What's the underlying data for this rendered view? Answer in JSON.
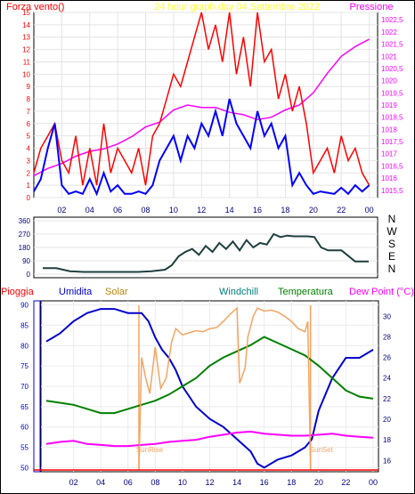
{
  "chart_data": [
    {
      "type": "line",
      "title": "24 hour graph day   04 Settembre 2022",
      "left_label": "Forza vento()",
      "right_label": "Pressione",
      "x_ticks": [
        "02",
        "04",
        "06",
        "08",
        "10",
        "12",
        "14",
        "16",
        "18",
        "20",
        "22",
        "00"
      ],
      "y_left_ticks": [
        "0",
        "1",
        "2",
        "3",
        "4",
        "5",
        "6",
        "7",
        "8",
        "9",
        "10",
        "11",
        "12",
        "13",
        "14",
        "15"
      ],
      "y_left_range": [
        0,
        15
      ],
      "y_right_ticks": [
        "1015,5",
        "1016",
        "1016,5",
        "1017",
        "1017,5",
        "1018",
        "1018,5",
        "1019",
        "1019,5",
        "1020",
        "1020,5",
        "1021",
        "1021,5",
        "1022",
        "1022,5"
      ],
      "y_right_range": [
        1015.2,
        1022.8
      ],
      "series": [
        {
          "name": "Pressione",
          "color": "#ff00ff",
          "axis": "right",
          "hours": [
            0,
            1,
            2,
            3,
            4,
            5,
            6,
            7,
            8,
            9,
            10,
            11,
            12,
            13,
            14,
            15,
            16,
            17,
            18,
            19,
            20,
            21,
            22,
            23,
            24
          ],
          "values": [
            1016.1,
            1016.4,
            1016.6,
            1016.9,
            1017.1,
            1017.2,
            1017.4,
            1017.7,
            1018.1,
            1018.3,
            1018.8,
            1019.0,
            1018.9,
            1018.9,
            1018.7,
            1018.6,
            1018.4,
            1018.5,
            1018.8,
            1019.0,
            1019.5,
            1020.3,
            1021.0,
            1021.4,
            1021.7
          ]
        },
        {
          "name": "",
          "color": "#ff0000",
          "axis": "left",
          "hours": [
            0,
            0.5,
            1,
            1.5,
            2,
            2.5,
            3,
            3.5,
            4,
            4.5,
            5,
            5.5,
            6,
            6.5,
            7,
            7.5,
            8,
            8.5,
            9,
            9.5,
            10,
            10.5,
            11,
            11.5,
            12,
            12.5,
            13,
            13.5,
            14,
            14.5,
            15,
            15.5,
            16,
            16.5,
            17,
            17.5,
            18,
            18.5,
            19,
            19.5,
            20,
            20.5,
            21,
            21.5,
            22,
            22.5,
            23,
            23.5,
            24
          ],
          "values": [
            2,
            4,
            5,
            6,
            3,
            2,
            5,
            1,
            4,
            1,
            6,
            2,
            4,
            3,
            2,
            4,
            1,
            5,
            6,
            8,
            10,
            9,
            11,
            13,
            15,
            12,
            14,
            11,
            15,
            10,
            13,
            9,
            15,
            11,
            12,
            8,
            10,
            7,
            9,
            6,
            2,
            3,
            4,
            2,
            5,
            3,
            4,
            2,
            1
          ]
        },
        {
          "name": "",
          "color": "#0000ff",
          "axis": "left",
          "hours": [
            0,
            0.5,
            1,
            1.5,
            2,
            2.5,
            3,
            3.5,
            4,
            4.5,
            5,
            5.5,
            6,
            6.5,
            7,
            7.5,
            8,
            8.5,
            9,
            9.5,
            10,
            10.5,
            11,
            11.5,
            12,
            12.5,
            13,
            13.5,
            14,
            14.5,
            15,
            15.5,
            16,
            16.5,
            17,
            17.5,
            18,
            18.5,
            19,
            19.5,
            20,
            20.5,
            21,
            21.5,
            22,
            22.5,
            23,
            23.5,
            24
          ],
          "values": [
            0.5,
            1.5,
            4,
            6,
            1,
            0.3,
            0.5,
            0.3,
            1.5,
            0.3,
            2,
            0.5,
            1,
            0.3,
            0.3,
            0.5,
            0.3,
            1,
            3,
            4,
            5,
            3,
            5,
            4,
            6,
            5,
            7,
            5,
            8,
            6,
            5,
            4,
            7,
            5,
            6,
            4,
            5,
            1,
            2,
            1,
            0.3,
            0.5,
            0.4,
            0.3,
            0.8,
            0.3,
            1,
            0.5,
            1
          ]
        }
      ]
    },
    {
      "type": "line",
      "right_labels": [
        "N",
        "W",
        "S",
        "E",
        "N"
      ],
      "y_ticks": [
        "360",
        "270",
        "180",
        "90",
        "0"
      ],
      "y_range": [
        0,
        360
      ],
      "series": [
        {
          "name": "",
          "color": "#1f3f3f",
          "hours": [
            0,
            1,
            2,
            3,
            4,
            5,
            6,
            7,
            8,
            9,
            9.5,
            10,
            10.5,
            11,
            11.5,
            12,
            12.5,
            13,
            13.5,
            14,
            14.5,
            15,
            15.5,
            16,
            16.5,
            17,
            17.5,
            18,
            18.5,
            19,
            19.5,
            20,
            20.5,
            21,
            22,
            23,
            24
          ],
          "values": [
            40,
            40,
            20,
            15,
            15,
            15,
            15,
            15,
            20,
            30,
            60,
            120,
            150,
            170,
            130,
            190,
            150,
            210,
            170,
            220,
            160,
            230,
            180,
            210,
            200,
            270,
            250,
            260,
            255,
            255,
            255,
            250,
            180,
            160,
            160,
            85,
            85
          ]
        }
      ]
    },
    {
      "type": "line",
      "legend": [
        "Pioggia",
        "Umidita",
        "Solar",
        "Windchill",
        "Temperatura",
        "Dew Point (°C)"
      ],
      "x_ticks": [
        "02",
        "04",
        "06",
        "08",
        "10",
        "12",
        "14",
        "16",
        "18",
        "20",
        "22",
        "00"
      ],
      "y_left_ticks": [
        "50",
        "55",
        "60",
        "65",
        "70",
        "75",
        "80",
        "85",
        "90"
      ],
      "y_left_range": [
        49,
        91
      ],
      "y_right_ticks": [
        "16",
        "18",
        "20",
        "22",
        "24",
        "26",
        "28",
        "30"
      ],
      "y_right_range": [
        14.9,
        31.5
      ],
      "annotations": [
        "SunRise",
        "SunSet"
      ],
      "series": [
        {
          "name": "Umidita",
          "color": "#0000cc",
          "axis": "left",
          "hours": [
            0,
            1,
            2,
            3,
            4,
            5,
            6,
            7,
            7.5,
            8,
            8.5,
            9,
            9.5,
            10,
            11,
            12,
            13,
            14,
            15,
            15.5,
            16,
            17,
            18,
            19,
            19.5,
            20,
            21,
            22,
            23,
            24
          ],
          "values": [
            81,
            83,
            86,
            88,
            89,
            89,
            88,
            88,
            86,
            82,
            79,
            77,
            74,
            70,
            65,
            62,
            60,
            57,
            54,
            51,
            50,
            52,
            53,
            55,
            57,
            64,
            72,
            77,
            77,
            79
          ]
        },
        {
          "name": "Temperatura",
          "color": "#008000",
          "axis": "right",
          "hours": [
            0,
            1,
            2,
            3,
            4,
            5,
            6,
            7,
            8,
            9,
            10,
            11,
            12,
            13,
            14,
            15,
            16,
            17,
            18,
            19,
            20,
            21,
            22,
            23,
            24
          ],
          "values": [
            21.8,
            21.6,
            21.4,
            21.0,
            20.6,
            20.6,
            21.0,
            21.4,
            21.8,
            22.4,
            23.2,
            24.0,
            25.2,
            26.0,
            26.6,
            27.2,
            28.0,
            27.4,
            26.8,
            26.2,
            25.2,
            24.0,
            22.8,
            22.2,
            22.0
          ]
        },
        {
          "name": "Dew Point (°C)",
          "color": "#ff00ff",
          "axis": "right",
          "hours": [
            0,
            1,
            2,
            3,
            4,
            5,
            6,
            7,
            8,
            9,
            10,
            11,
            12,
            13,
            14,
            15,
            16,
            17,
            18,
            19,
            20,
            21,
            22,
            23,
            24
          ],
          "values": [
            17.6,
            17.8,
            17.9,
            17.6,
            17.5,
            17.4,
            17.4,
            17.5,
            17.6,
            17.8,
            17.9,
            18.0,
            18.3,
            18.5,
            18.7,
            18.8,
            18.6,
            18.5,
            18.4,
            18.4,
            18.5,
            18.6,
            18.4,
            18.3,
            18.2
          ]
        },
        {
          "name": "Solar",
          "color": "#f4a460",
          "axis": "right",
          "hours": [
            6.8,
            7,
            7.3,
            7.6,
            8,
            8.4,
            8.8,
            9.2,
            9.5,
            10,
            10.5,
            11,
            11.5,
            12,
            12.5,
            13,
            13.5,
            14,
            14.2,
            14.6,
            14.8,
            15.2,
            15.5,
            16,
            16.5,
            17,
            17.5,
            18,
            18.5,
            19,
            19.2,
            19.4
          ],
          "values": [
            15.2,
            26.0,
            24.0,
            22.5,
            27.0,
            23.0,
            24.0,
            27.5,
            28.8,
            28.2,
            28.4,
            28.6,
            28.5,
            28.8,
            28.9,
            29.5,
            30.2,
            30.8,
            23.5,
            25.0,
            28.0,
            30.0,
            30.8,
            30.5,
            30.6,
            30.4,
            30.0,
            29.5,
            28.8,
            28.5,
            29.5,
            15.2
          ]
        }
      ]
    }
  ]
}
